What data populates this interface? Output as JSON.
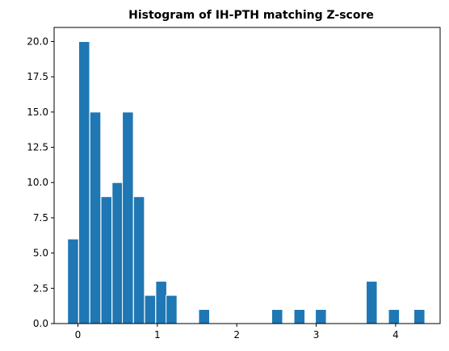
{
  "chart_data": {
    "type": "bar",
    "title": "Histogram of IH-PTH matching Z-score",
    "xlabel": "",
    "ylabel": "",
    "xlim": [
      -0.3,
      4.56
    ],
    "ylim": [
      0,
      21
    ],
    "grid": false,
    "bar_color": "#1f77b4",
    "bar_edge_color": "#ffffff",
    "bin_width": 0.1375,
    "bins": [
      {
        "x": -0.13,
        "value": 6
      },
      {
        "x": 0.01,
        "value": 20
      },
      {
        "x": 0.15,
        "value": 15
      },
      {
        "x": 0.29,
        "value": 9
      },
      {
        "x": 0.43,
        "value": 10
      },
      {
        "x": 0.56,
        "value": 15
      },
      {
        "x": 0.7,
        "value": 9
      },
      {
        "x": 0.84,
        "value": 2
      },
      {
        "x": 0.98,
        "value": 3
      },
      {
        "x": 1.11,
        "value": 2
      },
      {
        "x": 1.52,
        "value": 1
      },
      {
        "x": 2.44,
        "value": 1
      },
      {
        "x": 2.72,
        "value": 1
      },
      {
        "x": 2.99,
        "value": 1
      },
      {
        "x": 3.63,
        "value": 3
      },
      {
        "x": 3.91,
        "value": 1
      },
      {
        "x": 4.23,
        "value": 1
      }
    ],
    "x_ticks": [
      {
        "value": 0,
        "label": "0"
      },
      {
        "value": 1,
        "label": "1"
      },
      {
        "value": 2,
        "label": "2"
      },
      {
        "value": 3,
        "label": "3"
      },
      {
        "value": 4,
        "label": "4"
      }
    ],
    "y_ticks": [
      {
        "value": 0,
        "label": "0.0"
      },
      {
        "value": 2.5,
        "label": "2.5"
      },
      {
        "value": 5,
        "label": "5.0"
      },
      {
        "value": 7.5,
        "label": "7.5"
      },
      {
        "value": 10,
        "label": "10.0"
      },
      {
        "value": 12.5,
        "label": "12.5"
      },
      {
        "value": 15,
        "label": "15.0"
      },
      {
        "value": 17.5,
        "label": "17.5"
      },
      {
        "value": 20,
        "label": "20.0"
      }
    ]
  }
}
